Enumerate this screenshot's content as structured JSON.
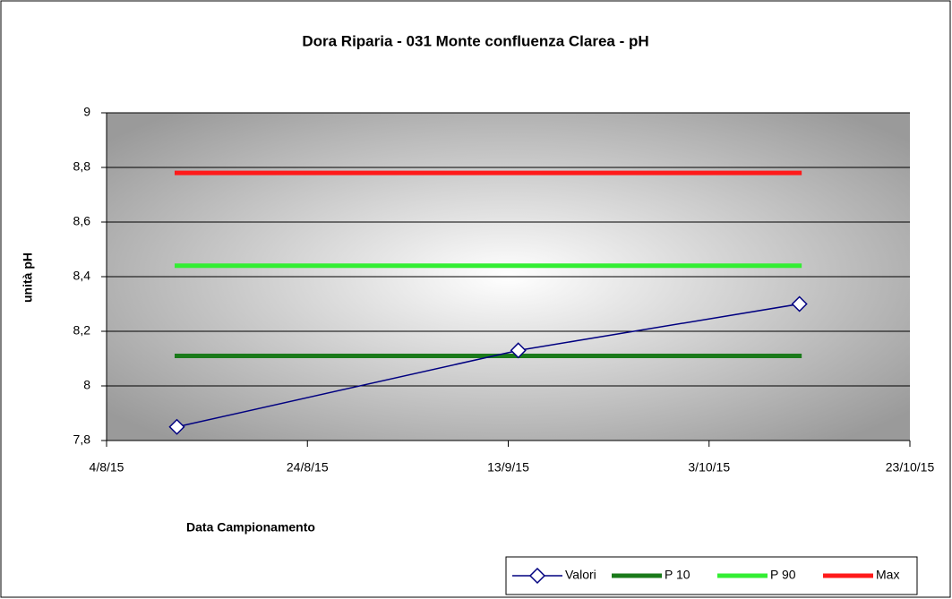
{
  "chart_data": {
    "type": "line",
    "title": "Dora Riparia - 031 Monte confluenza Clarea - pH",
    "x_label": "Data Campionamento",
    "y_label": "unità pH",
    "x": [
      "2015-08-11",
      "2015-09-14",
      "2015-10-12"
    ],
    "series": [
      {
        "name": "Valori",
        "color": "#000080",
        "values": [
          7.85,
          8.13,
          8.3
        ],
        "marker": "diamond"
      },
      {
        "name": "P 10",
        "color": "#1a7a1a",
        "values": [
          8.11,
          8.11,
          8.11
        ]
      },
      {
        "name": "P 90",
        "color": "#33ee33",
        "values": [
          8.44,
          8.44,
          8.44
        ]
      },
      {
        "name": "Max",
        "color": "#ff1a1a",
        "values": [
          8.78,
          8.78,
          8.78
        ]
      }
    ],
    "xlim": [
      "2015-08-04",
      "2015-10-23"
    ],
    "xticks": [
      {
        "value": "2015-08-04",
        "label": "4/8/15"
      },
      {
        "value": "2015-08-24",
        "label": "24/8/15"
      },
      {
        "value": "2015-09-13",
        "label": "13/9/15"
      },
      {
        "value": "2015-10-03",
        "label": "3/10/15"
      },
      {
        "value": "2015-10-23",
        "label": "23/10/15"
      }
    ],
    "ylim": [
      7.8,
      9
    ],
    "yticks": [
      {
        "value": 7.8,
        "label": "7,8"
      },
      8,
      {
        "value": 8.2,
        "label": "8,2"
      },
      {
        "value": 8.4,
        "label": "8,4"
      },
      {
        "value": 8.6,
        "label": "8,6"
      },
      {
        "value": 8.8,
        "label": "8,8"
      },
      9
    ],
    "grid": true,
    "legend": "bottom-right"
  }
}
